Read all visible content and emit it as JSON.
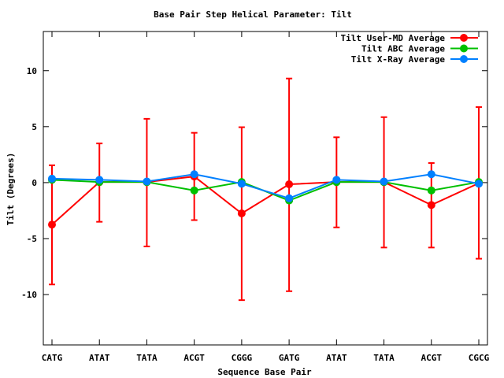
{
  "chart_data": {
    "type": "line",
    "title": "Base Pair Step Helical Parameter: Tilt",
    "xlabel": "Sequence Base Pair",
    "ylabel": "Tilt (Degrees)",
    "categories": [
      "CATG",
      "ATAT",
      "TATA",
      "ACGT",
      "CGGG",
      "GATG",
      "ATAT",
      "TATA",
      "ACGT",
      "CGCG"
    ],
    "ylim": [
      -14.5,
      13.5
    ],
    "yticks": [
      -10,
      -5,
      0,
      5,
      10
    ],
    "legend_position": "top-right",
    "series": [
      {
        "name": "Tilt User-MD Average",
        "color": "#ff0000",
        "values": [
          -3.75,
          0.05,
          0.05,
          0.55,
          -2.75,
          -0.15,
          0.05,
          0.05,
          -2.0,
          -0.05
        ],
        "error_low": [
          -9.1,
          -3.5,
          -5.7,
          -3.35,
          -10.5,
          -9.7,
          -4.0,
          -5.8,
          -5.8,
          -6.8
        ],
        "error_high": [
          1.55,
          3.5,
          5.7,
          4.45,
          4.95,
          9.3,
          4.05,
          5.85,
          1.75,
          6.75
        ]
      },
      {
        "name": "Tilt ABC Average",
        "color": "#00c000",
        "values": [
          0.25,
          0.05,
          0.05,
          -0.7,
          0.05,
          -1.6,
          0.05,
          0.05,
          -0.7,
          0.05
        ]
      },
      {
        "name": "Tilt X-Ray Average",
        "color": "#0080ff",
        "values": [
          0.35,
          0.25,
          0.1,
          0.75,
          -0.1,
          -1.4,
          0.25,
          0.1,
          0.75,
          -0.1
        ]
      }
    ]
  }
}
